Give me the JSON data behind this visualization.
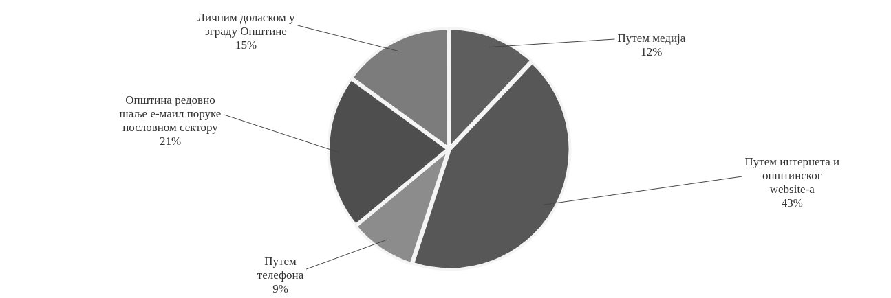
{
  "chart_data": {
    "type": "pie",
    "categories": [
      "Путем медија",
      "Путем интернета и општинског website-a",
      "Путем телефона",
      "Општина редовно шаље е-маил поруке пословном сектору",
      "Личним доласком у зграду Општине"
    ],
    "values": [
      12,
      43,
      9,
      21,
      15
    ],
    "colors": [
      "#5e5e5e",
      "#575757",
      "#8c8c8c",
      "#4e4e4e",
      "#7c7c7c"
    ],
    "value_labels": [
      "12%",
      "43%",
      "9%",
      "21%",
      "15%"
    ],
    "legend": false
  }
}
